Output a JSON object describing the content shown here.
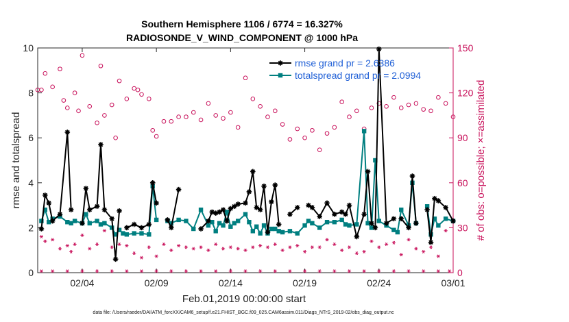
{
  "chart_data": {
    "type": "line",
    "title": "Southern Hemisphere 1106 / 6774 = 16.327%",
    "subtitle": "RADIOSONDE_V_WIND_COMPONENT @ 1000 hPa",
    "xlabel": "Feb.01,2019 00:00:00 start",
    "ylabel": "rmse and totalspread",
    "ylabel_right": "# of obs: o=possible; ×=assimilated",
    "footnote": "data file: /Users/raeder/DAI/ATM_forcXX/CAM6_setup/f.e21.FHIST_BGC.f09_025.CAM6assim.011/Diags_NTrS_2019-02/obs_diag_output.nc",
    "xlim": [
      0,
      28
    ],
    "ylim": [
      0,
      10
    ],
    "ylim_right": [
      0,
      150
    ],
    "x_ticks": [
      {
        "x": 3,
        "label": "02/04"
      },
      {
        "x": 8,
        "label": "02/09"
      },
      {
        "x": 13,
        "label": "02/14"
      },
      {
        "x": 18,
        "label": "02/19"
      },
      {
        "x": 23,
        "label": "02/24"
      },
      {
        "x": 28,
        "label": "03/01"
      }
    ],
    "y_ticks": [
      "0",
      "2",
      "4",
      "6",
      "8",
      "10"
    ],
    "y_ticks_right": [
      "0",
      "30",
      "60",
      "90",
      "120",
      "150"
    ],
    "legend": [
      {
        "name": "rmse grand pr = 2.6386",
        "color": "#000000"
      },
      {
        "name": "totalspread grand pr = 2.0994",
        "color": "#007f80"
      }
    ],
    "series": [
      {
        "name": "rmse",
        "color": "#000000",
        "x": [
          0.25,
          0.5,
          0.75,
          1.0,
          1.5,
          2.0,
          2.25,
          2.5,
          3.0,
          3.25,
          3.5,
          4.0,
          4.25,
          4.5,
          5.0,
          5.25,
          5.5,
          5.75,
          6.0,
          6.5,
          7.0,
          7.5,
          7.75,
          8.0,
          8.5,
          8.75,
          9.0,
          9.5,
          10.0,
          10.5,
          11.0,
          11.5,
          11.75,
          12.0,
          12.25,
          12.5,
          12.75,
          13.0,
          13.25,
          13.5,
          14.0,
          14.25,
          14.5,
          14.75,
          15.0,
          15.25,
          15.5,
          15.75,
          16.0,
          16.25,
          16.5,
          17.0,
          17.5,
          18.0,
          18.25,
          18.5,
          19.0,
          19.5,
          20.0,
          20.5,
          20.75,
          21.0,
          21.5,
          22.0,
          22.25,
          22.5,
          22.75,
          23.0,
          23.5,
          24.0,
          24.25,
          24.5,
          25.0,
          25.25,
          25.5,
          26.0,
          26.25,
          26.5,
          26.75,
          27.0,
          27.5,
          28.0
        ],
        "values": [
          1.95,
          3.45,
          3.1,
          2.3,
          2.6,
          6.25,
          2.8,
          null,
          2.2,
          3.75,
          2.8,
          2.95,
          5.7,
          2.8,
          2.4,
          0.6,
          2.75,
          null,
          2.0,
          2.15,
          2.0,
          2.15,
          4.0,
          3.1,
          null,
          2.35,
          2.0,
          3.7,
          null,
          null,
          1.95,
          2.3,
          2.7,
          2.65,
          2.7,
          2.8,
          2.3,
          2.85,
          2.95,
          3.05,
          3.1,
          3.6,
          4.5,
          2.9,
          2.8,
          3.85,
          1.8,
          3.15,
          3.9,
          2.15,
          null,
          2.6,
          2.9,
          null,
          3.0,
          2.9,
          2.5,
          3.1,
          2.6,
          2.7,
          2.6,
          3.0,
          1.6,
          2.6,
          4.5,
          2.2,
          2.0,
          9.95,
          2.2,
          2.4,
          null,
          2.4,
          2.0,
          4.3,
          2.2,
          null,
          2.8,
          1.35,
          3.3,
          3.2,
          2.9,
          2.3
        ]
      },
      {
        "name": "totalspread",
        "color": "#007f80",
        "x": [
          0.25,
          0.5,
          0.75,
          1.0,
          1.5,
          2.0,
          2.25,
          2.5,
          3.0,
          3.25,
          3.5,
          4.0,
          4.25,
          4.5,
          5.0,
          5.25,
          5.5,
          5.75,
          6.0,
          6.5,
          7.0,
          7.5,
          7.75,
          8.0,
          8.5,
          8.75,
          9.0,
          9.5,
          10.0,
          10.5,
          11.0,
          11.5,
          11.75,
          12.0,
          12.25,
          12.5,
          12.75,
          13.0,
          13.25,
          13.5,
          14.0,
          14.25,
          14.5,
          14.75,
          15.0,
          15.25,
          15.5,
          15.75,
          16.0,
          16.25,
          16.5,
          17.0,
          17.5,
          18.0,
          18.25,
          18.5,
          19.0,
          19.5,
          20.0,
          20.5,
          20.75,
          21.0,
          21.5,
          22.0,
          22.25,
          22.5,
          22.75,
          23.0,
          23.5,
          24.0,
          24.25,
          24.5,
          25.0,
          25.25,
          25.5,
          26.0,
          26.25,
          26.5,
          26.75,
          27.0,
          27.5,
          28.0
        ],
        "values": [
          2.3,
          2.8,
          2.25,
          2.4,
          2.5,
          2.25,
          2.2,
          2.3,
          2.2,
          2.6,
          2.2,
          2.3,
          2.15,
          2.2,
          2.0,
          1.7,
          1.9,
          1.75,
          1.7,
          1.75,
          1.75,
          1.7,
          3.85,
          2.35,
          null,
          2.3,
          2.2,
          2.35,
          2.3,
          1.95,
          2.8,
          2.1,
          2.25,
          1.85,
          2.2,
          2.1,
          2.7,
          2.05,
          2.2,
          2.3,
          2.6,
          2.25,
          1.85,
          2.05,
          1.75,
          2.1,
          1.75,
          1.95,
          1.95,
          1.85,
          1.8,
          1.85,
          1.75,
          2.1,
          2.3,
          2.2,
          2.0,
          2.25,
          2.25,
          2.35,
          2.15,
          2.1,
          2.15,
          6.3,
          2.2,
          2.0,
          5.0,
          2.3,
          2.1,
          1.9,
          1.8,
          2.8,
          2.1,
          4.0,
          2.2,
          null,
          2.95,
          1.7,
          2.4,
          2.1,
          2.4,
          2.3
        ]
      },
      {
        "name": "obs possible",
        "color": "#c8105a",
        "x": [
          0,
          0.25,
          0.5,
          1.0,
          1.5,
          1.75,
          2.0,
          2.5,
          2.75,
          3.0,
          3.5,
          4.0,
          4.25,
          4.5,
          5.0,
          5.25,
          5.5,
          6.0,
          6.5,
          6.75,
          7.0,
          7.5,
          7.75,
          8.0,
          8.5,
          9.0,
          9.5,
          10.0,
          10.5,
          11.0,
          11.5,
          12.0,
          12.5,
          13.0,
          13.5,
          14.0,
          14.5,
          15.0,
          15.5,
          16.0,
          16.5,
          17.0,
          17.5,
          18.0,
          18.5,
          19.0,
          19.5,
          20.0,
          20.5,
          21.0,
          21.5,
          22.0,
          22.5,
          23.0,
          23.5,
          24.0,
          24.5,
          25.0,
          25.5,
          26.0,
          26.5,
          27.0,
          27.5,
          28.0
        ],
        "values": [
          122,
          122,
          133,
          124,
          136,
          115,
          110,
          120,
          108,
          145,
          111,
          100,
          138,
          105,
          112,
          90,
          128,
          116,
          123,
          122,
          119,
          116,
          95,
          91,
          101,
          101,
          104,
          104,
          107,
          102,
          113,
          105,
          103,
          107,
          97,
          130,
          116,
          111,
          104,
          108,
          99,
          89,
          96,
          90,
          95,
          82,
          93,
          97,
          114,
          104,
          108,
          96,
          110,
          113,
          111,
          117,
          110,
          112,
          113,
          109,
          108,
          117,
          113,
          104
        ]
      },
      {
        "name": "obs assimilated",
        "color": "#c8105a",
        "x": [
          0.25,
          0.5,
          1.0,
          1.5,
          2.0,
          2.25,
          2.5,
          3.0,
          3.5,
          4.0,
          4.5,
          5.0,
          5.5,
          6.0,
          6.5,
          7.0,
          7.5,
          8.0,
          8.5,
          9.0,
          9.5,
          10.0,
          10.5,
          11.0,
          11.5,
          12.0,
          12.5,
          13.0,
          13.5,
          14.0,
          14.5,
          15.0,
          15.5,
          16.0,
          16.5,
          17.0,
          17.5,
          18.0,
          18.5,
          19.0,
          19.5,
          20.0,
          20.5,
          21.0,
          21.5,
          22.0,
          22.5,
          23.0,
          23.5,
          24.0,
          24.5,
          25.0,
          25.5,
          26.0,
          26.5,
          27.0,
          27.5
        ],
        "values": [
          24,
          21,
          22,
          16,
          18,
          14,
          19,
          25,
          16,
          19,
          28,
          17,
          19,
          18,
          13,
          10,
          17,
          11,
          19,
          15,
          18,
          17,
          16,
          17,
          15,
          19,
          16,
          17,
          16,
          15,
          17,
          18,
          17,
          19,
          15,
          17,
          18,
          14,
          17,
          17,
          22,
          19,
          15,
          17,
          13,
          14,
          21,
          17,
          19,
          20,
          12,
          22,
          16,
          14,
          17,
          11,
          28
        ]
      },
      {
        "name": "obs assimilated baseline",
        "color": "#c8105a",
        "x": [
          0.25,
          1.0,
          2.0,
          3.0,
          4.0,
          5.0,
          6.0,
          7.0,
          8.0,
          9.0,
          10.0,
          11.0,
          12.0,
          13.0,
          14.0,
          15.0,
          16.0,
          17.0,
          18.0,
          19.0,
          20.0,
          21.0,
          22.0,
          23.0,
          24.0,
          25.0,
          26.0,
          27.0,
          27.75
        ],
        "values": [
          1,
          1,
          1,
          1,
          1,
          1,
          1,
          1,
          1,
          1,
          1,
          1,
          1,
          1,
          1,
          1,
          1,
          1,
          1,
          1,
          1,
          1,
          1,
          1,
          1,
          1,
          1,
          1,
          1
        ]
      }
    ]
  }
}
